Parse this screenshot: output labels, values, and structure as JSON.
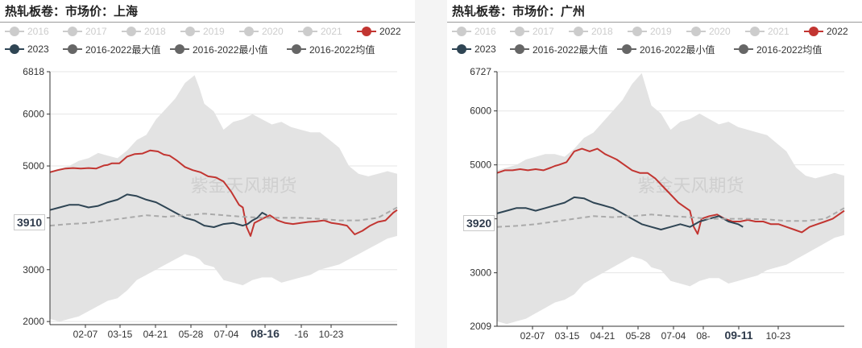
{
  "chart_data": [
    {
      "type": "line",
      "title": "热轧板卷：市场价：上海",
      "watermark": "紫金天风期货",
      "current_value_label": "3910",
      "ylim": [
        1940,
        6818
      ],
      "y_ticks": [
        "6818",
        "6000",
        "5000",
        "4000",
        "3000",
        "2000"
      ],
      "x_ticks": [
        "02-07",
        "03-15",
        "04-21",
        "05-28",
        "07-04",
        "08-16",
        "-16",
        "10-23"
      ],
      "highlight_tick": "08-16",
      "legend": [
        {
          "name": "2016",
          "color": "#cccccc",
          "muted": true
        },
        {
          "name": "2017",
          "color": "#cccccc",
          "muted": true
        },
        {
          "name": "2018",
          "color": "#cccccc",
          "muted": true
        },
        {
          "name": "2019",
          "color": "#cccccc",
          "muted": true
        },
        {
          "name": "2020",
          "color": "#cccccc",
          "muted": true
        },
        {
          "name": "2021",
          "color": "#cccccc",
          "muted": true
        },
        {
          "name": "2022",
          "color": "#c23531",
          "muted": false
        },
        {
          "name": "2023",
          "color": "#2f4554",
          "muted": false
        },
        {
          "name": "2016-2022最大值",
          "color": "#666666",
          "muted": false
        },
        {
          "name": "2016-2022最小值",
          "color": "#666666",
          "muted": false
        },
        {
          "name": "2016-2022均值",
          "color": "#666666",
          "muted": false
        }
      ],
      "band": {
        "x": [
          0,
          10,
          20,
          30,
          40,
          50,
          60,
          70,
          80,
          90,
          100,
          110,
          120,
          130,
          140,
          150,
          155,
          160,
          170,
          180,
          190,
          200,
          210,
          220,
          230,
          240,
          250,
          260,
          270,
          280,
          290,
          300,
          310,
          320,
          330,
          340,
          350,
          360
        ],
        "max": [
          4900,
          4950,
          5000,
          5100,
          5150,
          5250,
          5200,
          5150,
          5300,
          5500,
          5600,
          5900,
          6100,
          6300,
          6600,
          6750,
          6500,
          6200,
          6050,
          5700,
          5850,
          5900,
          6000,
          5900,
          5800,
          5850,
          5750,
          5700,
          5650,
          5650,
          5500,
          5350,
          5000,
          4850,
          4800,
          4850,
          4900,
          4850
        ],
        "min": [
          2050,
          2000,
          2050,
          2100,
          2200,
          2300,
          2400,
          2450,
          2600,
          2800,
          2900,
          3000,
          3100,
          3200,
          3300,
          3250,
          3200,
          3100,
          3050,
          2800,
          2750,
          2700,
          2800,
          2850,
          2850,
          2750,
          2800,
          2850,
          2900,
          3000,
          3050,
          3100,
          3200,
          3300,
          3400,
          3500,
          3600,
          3650
        ]
      },
      "series": [
        {
          "name": "2022",
          "color": "#c23531",
          "x": [
            0,
            8,
            16,
            24,
            32,
            40,
            48,
            56,
            60,
            64,
            72,
            80,
            88,
            96,
            104,
            112,
            118,
            124,
            132,
            140,
            148,
            156,
            164,
            172,
            180,
            188,
            196,
            200,
            204,
            208,
            212,
            220,
            228,
            236,
            244,
            252,
            260,
            268,
            276,
            284,
            292,
            300,
            308,
            316,
            324,
            332,
            340,
            348,
            356,
            360
          ],
          "y": [
            4880,
            4920,
            4950,
            4960,
            4950,
            4960,
            4950,
            5010,
            5020,
            5050,
            5050,
            5180,
            5230,
            5240,
            5300,
            5280,
            5220,
            5200,
            5100,
            4980,
            4920,
            4880,
            4800,
            4780,
            4700,
            4500,
            4250,
            4200,
            3820,
            3650,
            3900,
            3980,
            4050,
            3950,
            3900,
            3880,
            3900,
            3920,
            3930,
            3950,
            3900,
            3880,
            3850,
            3680,
            3750,
            3850,
            3920,
            3950,
            4100,
            4150
          ]
        },
        {
          "name": "2023",
          "color": "#2f4554",
          "x": [
            0,
            10,
            20,
            30,
            40,
            50,
            60,
            70,
            80,
            90,
            100,
            110,
            120,
            130,
            140,
            150,
            160,
            170,
            180,
            190,
            200,
            205,
            210,
            215,
            220,
            225
          ],
          "y": [
            4150,
            4200,
            4250,
            4250,
            4200,
            4230,
            4300,
            4350,
            4450,
            4420,
            4350,
            4300,
            4200,
            4100,
            4000,
            3950,
            3850,
            3820,
            3880,
            3900,
            3850,
            3880,
            3950,
            4000,
            4100,
            4050
          ]
        },
        {
          "name": "2016-2022均值",
          "color": "#aaaaaa",
          "dashed": true,
          "x": [
            0,
            20,
            40,
            60,
            80,
            100,
            120,
            140,
            160,
            180,
            200,
            220,
            240,
            260,
            280,
            300,
            320,
            340,
            360
          ],
          "y": [
            3850,
            3880,
            3900,
            3950,
            4000,
            4050,
            4020,
            4050,
            4080,
            4050,
            4020,
            4000,
            4000,
            4000,
            3980,
            3950,
            3950,
            4000,
            4200
          ]
        }
      ]
    },
    {
      "type": "line",
      "title": "热轧板卷：市场价：广州",
      "watermark": "紫金天风期货",
      "current_value_label": "3920",
      "ylim": [
        2009,
        6727
      ],
      "y_ticks": [
        "6727",
        "6000",
        "5000",
        "4000",
        "3000",
        "2009"
      ],
      "x_ticks": [
        "02-07",
        "03-15",
        "04-21",
        "05-28",
        "07-04",
        "08-",
        "09-11",
        "10-23"
      ],
      "highlight_tick": "09-11",
      "legend": [
        {
          "name": "2016",
          "color": "#cccccc",
          "muted": true
        },
        {
          "name": "2017",
          "color": "#cccccc",
          "muted": true
        },
        {
          "name": "2018",
          "color": "#cccccc",
          "muted": true
        },
        {
          "name": "2019",
          "color": "#cccccc",
          "muted": true
        },
        {
          "name": "2020",
          "color": "#cccccc",
          "muted": true
        },
        {
          "name": "2021",
          "color": "#cccccc",
          "muted": true
        },
        {
          "name": "2022",
          "color": "#c23531",
          "muted": false
        },
        {
          "name": "2023",
          "color": "#2f4554",
          "muted": false
        },
        {
          "name": "2016-2022最大值",
          "color": "#666666",
          "muted": false
        },
        {
          "name": "2016-2022最小值",
          "color": "#666666",
          "muted": false
        },
        {
          "name": "2016-2022均值",
          "color": "#666666",
          "muted": false
        }
      ],
      "band": {
        "x": [
          0,
          10,
          20,
          30,
          40,
          50,
          60,
          70,
          80,
          90,
          100,
          110,
          120,
          130,
          140,
          150,
          155,
          160,
          170,
          180,
          190,
          200,
          210,
          220,
          230,
          240,
          250,
          260,
          270,
          280,
          290,
          300,
          310,
          320,
          330,
          340,
          350,
          360
        ],
        "max": [
          4900,
          4950,
          5000,
          5100,
          5150,
          5200,
          5200,
          5150,
          5300,
          5500,
          5600,
          5800,
          6000,
          6200,
          6500,
          6700,
          6400,
          6100,
          5950,
          5650,
          5800,
          5850,
          5950,
          5850,
          5750,
          5800,
          5700,
          5650,
          5600,
          5550,
          5400,
          5250,
          4950,
          4800,
          4750,
          4800,
          4850,
          4800
        ],
        "min": [
          2100,
          2050,
          2100,
          2150,
          2250,
          2350,
          2450,
          2500,
          2600,
          2800,
          2900,
          3000,
          3100,
          3200,
          3300,
          3250,
          3200,
          3100,
          3050,
          2850,
          2800,
          2750,
          2850,
          2900,
          2900,
          2800,
          2850,
          2900,
          2950,
          3050,
          3100,
          3150,
          3250,
          3350,
          3450,
          3550,
          3650,
          3700
        ]
      },
      "series": [
        {
          "name": "2022",
          "color": "#c23531",
          "x": [
            0,
            8,
            16,
            24,
            32,
            40,
            48,
            56,
            60,
            64,
            72,
            80,
            88,
            96,
            104,
            112,
            118,
            124,
            132,
            140,
            148,
            156,
            164,
            172,
            180,
            188,
            196,
            200,
            204,
            208,
            212,
            220,
            228,
            236,
            244,
            252,
            260,
            268,
            276,
            284,
            292,
            300,
            308,
            316,
            324,
            332,
            340,
            348,
            356,
            360
          ],
          "y": [
            4850,
            4900,
            4900,
            4920,
            4900,
            4920,
            4900,
            4950,
            4980,
            5000,
            5050,
            5250,
            5300,
            5250,
            5300,
            5200,
            5150,
            5100,
            5000,
            4900,
            4850,
            4850,
            4750,
            4600,
            4450,
            4300,
            4200,
            4150,
            3850,
            3720,
            4000,
            4050,
            4080,
            4000,
            3950,
            3950,
            3980,
            3950,
            3950,
            3900,
            3900,
            3850,
            3800,
            3750,
            3850,
            3900,
            3950,
            4000,
            4100,
            4150
          ]
        },
        {
          "name": "2023",
          "color": "#2f4554",
          "x": [
            0,
            10,
            20,
            30,
            40,
            50,
            60,
            70,
            80,
            90,
            100,
            110,
            120,
            130,
            140,
            150,
            160,
            170,
            180,
            190,
            200,
            210,
            220,
            230,
            240,
            250,
            255
          ],
          "y": [
            4100,
            4150,
            4200,
            4200,
            4150,
            4200,
            4250,
            4300,
            4400,
            4380,
            4300,
            4250,
            4200,
            4100,
            4000,
            3900,
            3850,
            3800,
            3850,
            3900,
            3850,
            3950,
            4000,
            4050,
            3950,
            3900,
            3850
          ]
        },
        {
          "name": "2016-2022均值",
          "color": "#aaaaaa",
          "dashed": true,
          "x": [
            0,
            20,
            40,
            60,
            80,
            100,
            120,
            140,
            160,
            180,
            200,
            220,
            240,
            260,
            280,
            300,
            320,
            340,
            360
          ],
          "y": [
            3850,
            3870,
            3900,
            3950,
            4000,
            4050,
            4030,
            4050,
            4080,
            4050,
            4030,
            4000,
            4000,
            4000,
            3990,
            3960,
            3960,
            4000,
            4200
          ]
        }
      ]
    }
  ]
}
